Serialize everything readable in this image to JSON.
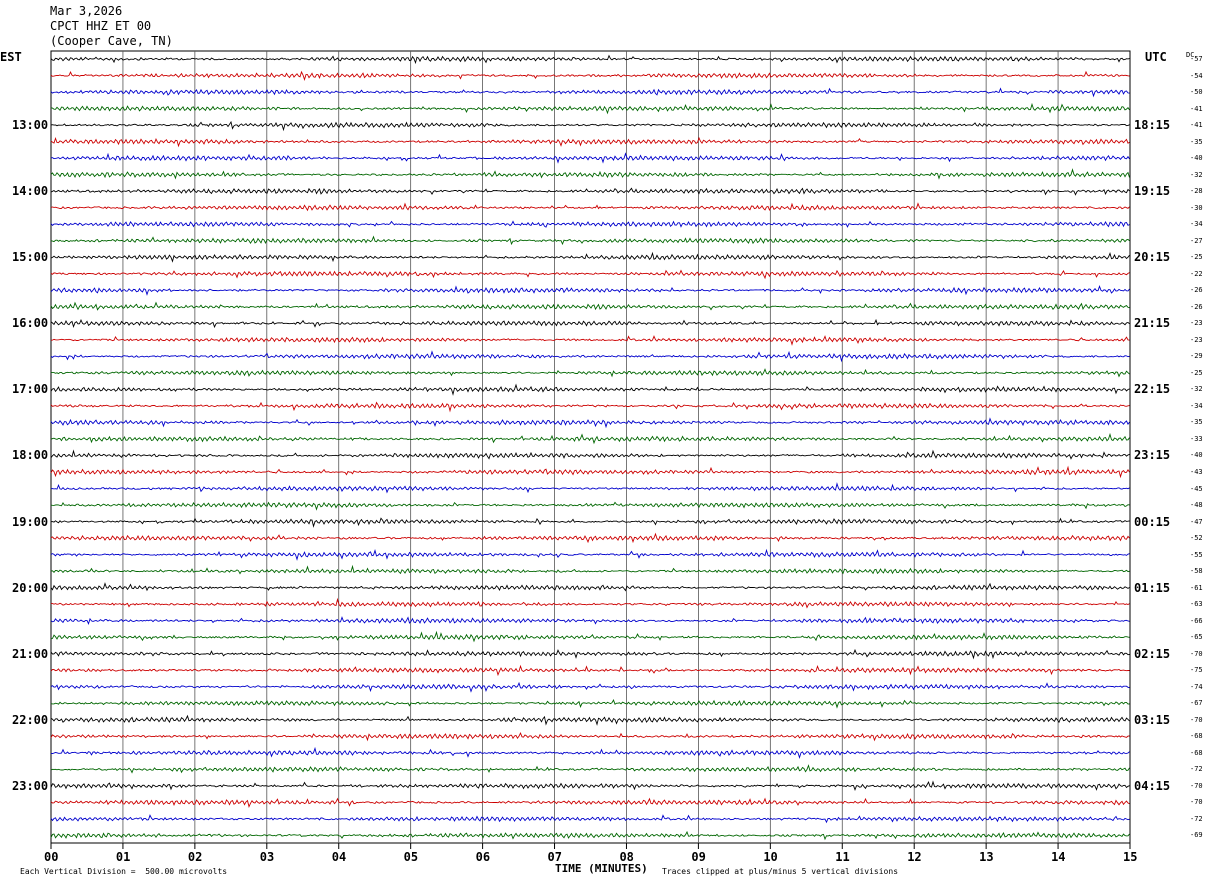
{
  "header": {
    "date": "Mar 3,2026",
    "station": "CPCT HHZ ET 00",
    "location": "(Cooper Cave, TN)"
  },
  "labels": {
    "left_zone": "EST",
    "right_zone": "UTC",
    "dc": "DC",
    "xaxis_title": "TIME (MINUTES)",
    "scale_note": "Each Vertical Division =  500.00 microvolts",
    "clip_note": "Traces clipped at plus/minus 5 vertical divisions"
  },
  "colors": {
    "trace_cycle": [
      "#000000",
      "#cc0000",
      "#0000cc",
      "#006600"
    ],
    "grid": "#000000",
    "background": "#ffffff"
  },
  "chart_data": {
    "type": "line",
    "title": "CPCT HHZ ET 00",
    "xlabel": "TIME (MINUTES)",
    "xlim": [
      0,
      15
    ],
    "x_ticks": [
      "00",
      "01",
      "02",
      "03",
      "04",
      "05",
      "06",
      "07",
      "08",
      "09",
      "10",
      "11",
      "12",
      "13",
      "14",
      "15"
    ],
    "trace_count": 48,
    "minutes_per_trace": 15,
    "left_hour_labels": [
      "13:00",
      "14:00",
      "15:00",
      "16:00",
      "17:00",
      "18:00",
      "19:00",
      "20:00",
      "21:00",
      "22:00",
      "23:00"
    ],
    "right_hour_labels": [
      "18:15",
      "19:15",
      "20:15",
      "21:15",
      "22:15",
      "23:15",
      "00:15",
      "01:15",
      "02:15",
      "03:15",
      "04:15"
    ],
    "dc_offsets": [
      -57,
      -54,
      -50,
      -41,
      -41,
      -35,
      -40,
      -32,
      -28,
      -30,
      -34,
      -27,
      -25,
      -22,
      -26,
      -26,
      -23,
      -23,
      -29,
      -25,
      -32,
      -34,
      -35,
      -33,
      -40,
      -43,
      -45,
      -48,
      -47,
      -52,
      -55,
      -58,
      -61,
      -63,
      -66,
      -65,
      -70,
      -75,
      -74,
      -67,
      -70,
      -68,
      -68,
      -72,
      -70,
      -70,
      -72,
      -69
    ]
  }
}
